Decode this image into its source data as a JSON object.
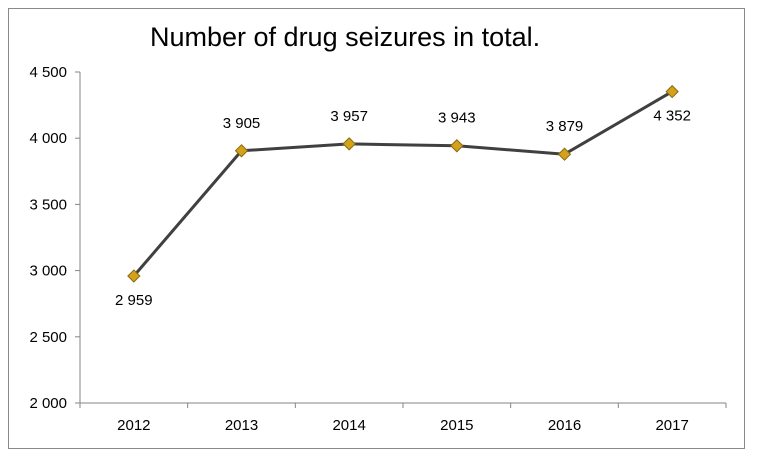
{
  "chart_data": {
    "type": "line",
    "title": "Number of drug seizures in total.",
    "xlabel": "",
    "ylabel": "",
    "categories": [
      "2012",
      "2013",
      "2014",
      "2015",
      "2016",
      "2017"
    ],
    "series": [
      {
        "values": [
          2959,
          3905,
          3957,
          3943,
          3879,
          4352
        ],
        "labels": [
          "2 959",
          "3 905",
          "3 957",
          "3 943",
          "3 879",
          "4 352"
        ],
        "line_color": "#404040",
        "marker_color": "#d4a21a",
        "marker": "diamond"
      }
    ],
    "ylim": [
      2000,
      4500
    ],
    "yticks": [
      2000,
      2500,
      3000,
      3500,
      4000,
      4500
    ],
    "ytick_labels": [
      "2 000",
      "2 500",
      "3 000",
      "3 500",
      "4 000",
      "4 500"
    ],
    "grid": false,
    "legend": "none"
  }
}
